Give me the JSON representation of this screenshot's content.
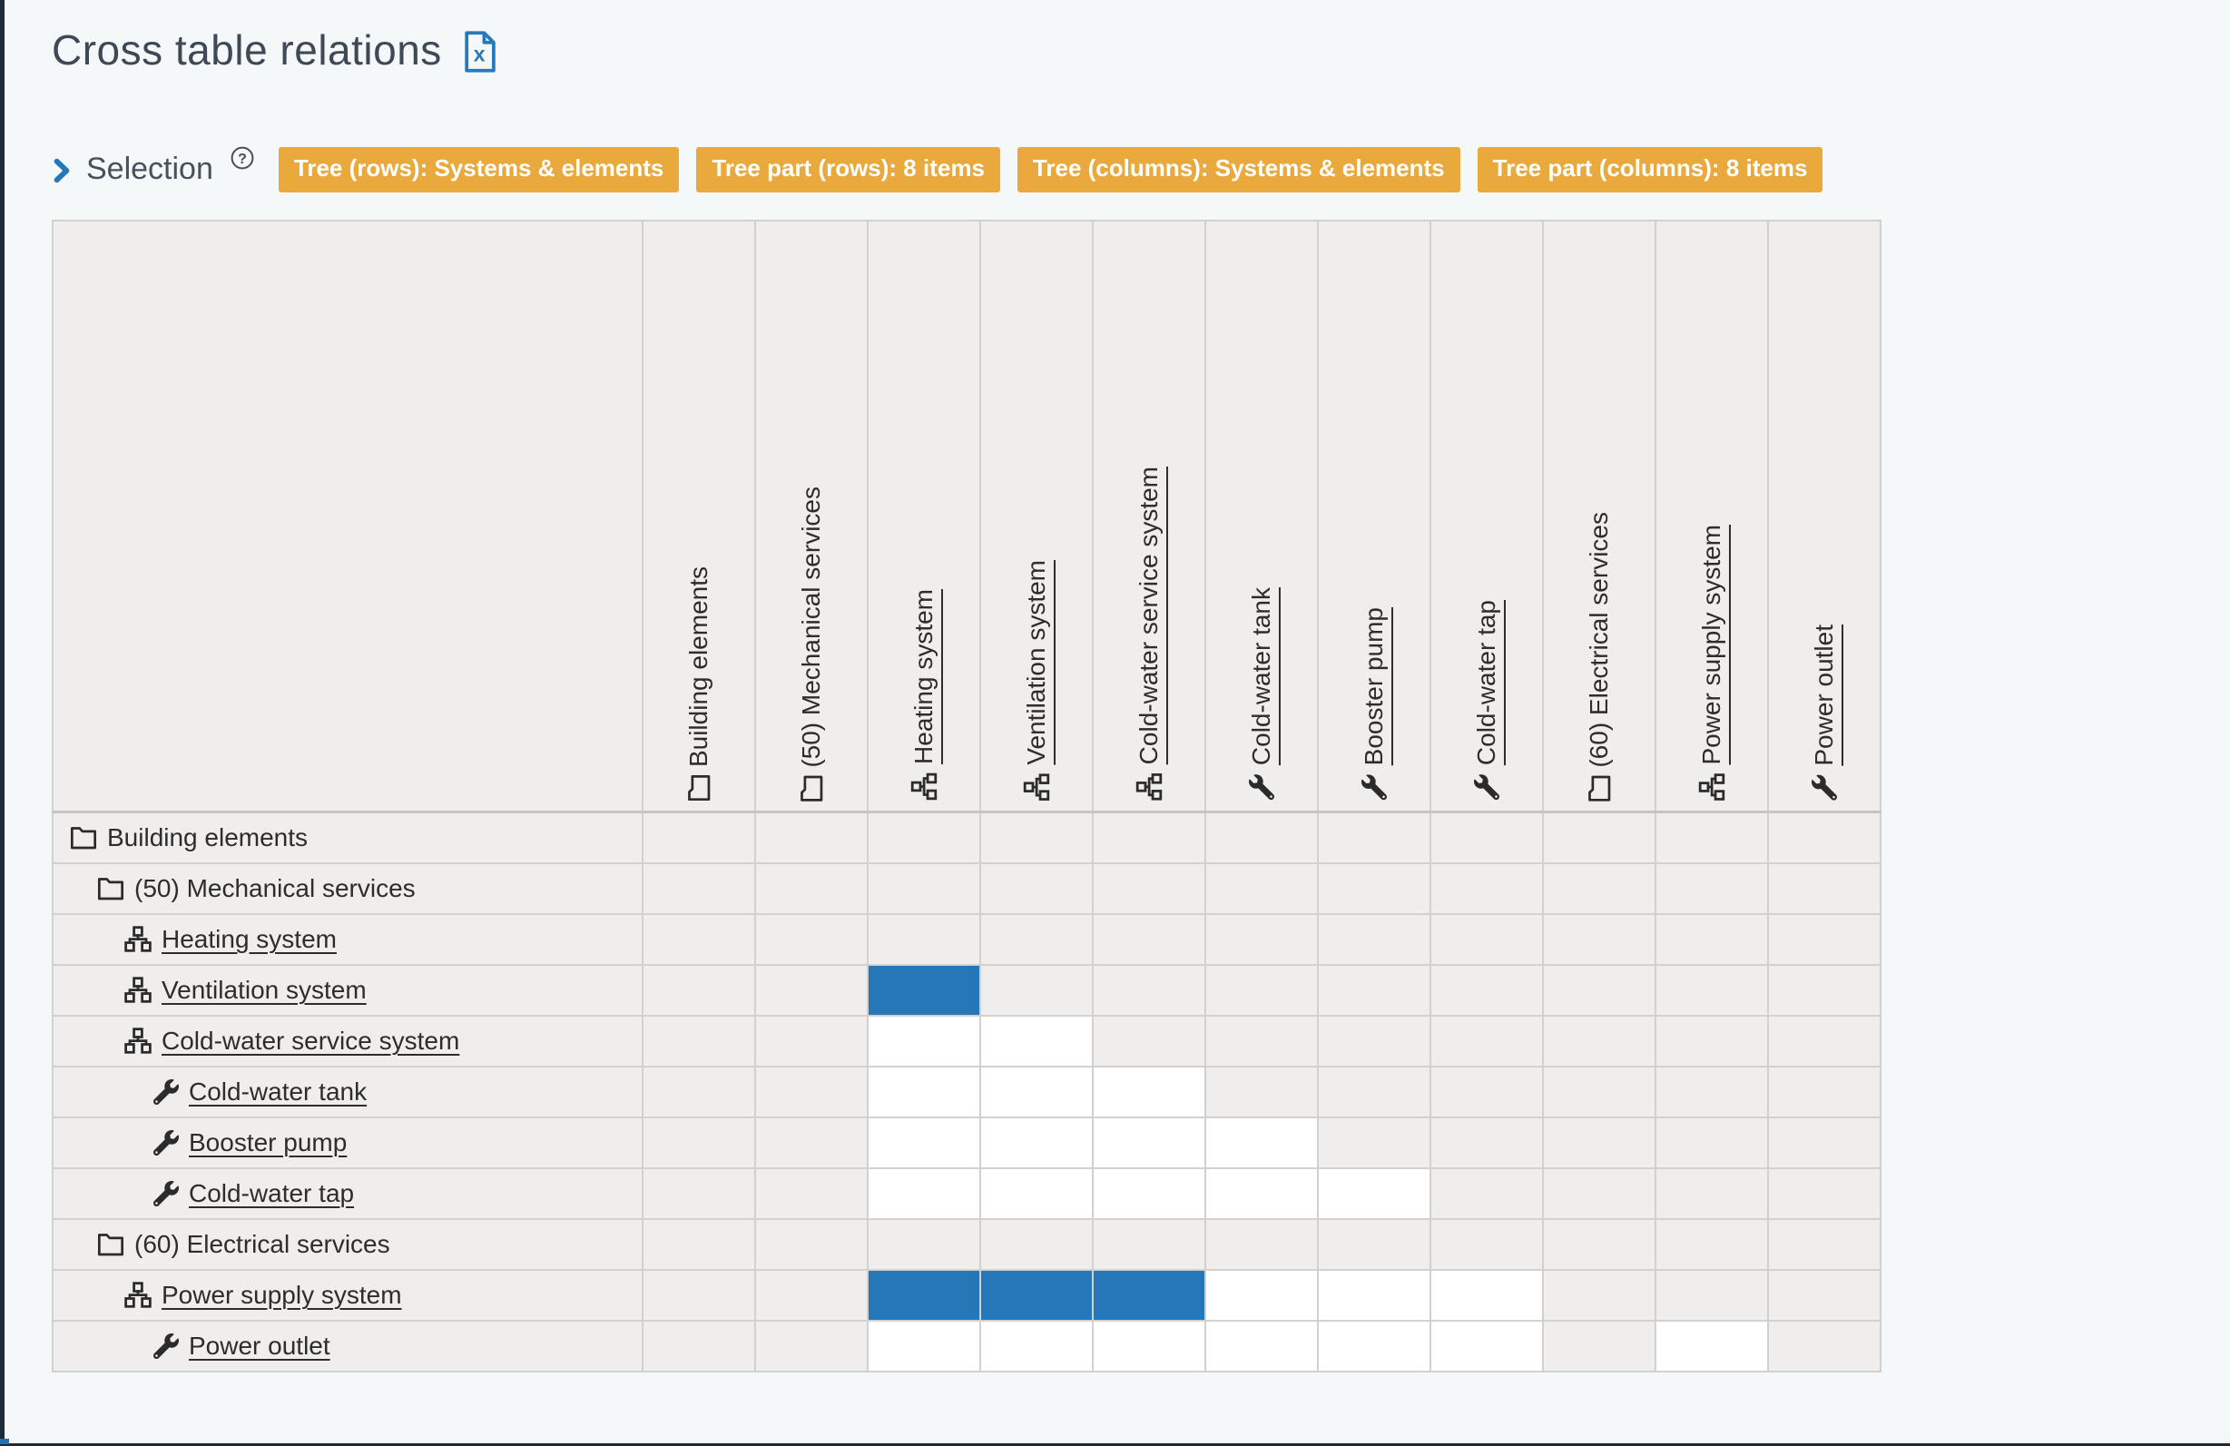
{
  "page": {
    "background": "#f4f8f9",
    "frame_color": "#1d2a37",
    "accent_blue": "#2577b9"
  },
  "header": {
    "title": "Cross table relations",
    "export_icon": "excel-file-icon",
    "export_letter": "x"
  },
  "selection": {
    "label": "Selection",
    "help_glyph": "?",
    "badge_color": "#eaa93c",
    "badges": [
      "Tree (rows): Systems & elements",
      "Tree part (rows): 8 items",
      "Tree (columns): Systems & elements",
      "Tree part (columns): 8 items"
    ]
  },
  "table": {
    "cell_colors": {
      "g": "#efeeec",
      "w": "#ffffff",
      "b": "#2677b8"
    },
    "cell_states": {
      "g": "not-applicable",
      "w": "no-relation",
      "b": "related"
    },
    "columns": [
      {
        "label": "Building elements",
        "icon": "folder",
        "link": false
      },
      {
        "label": "(50) Mechanical services",
        "icon": "folder",
        "link": false
      },
      {
        "label": "Heating system",
        "icon": "system",
        "link": true
      },
      {
        "label": "Ventilation system",
        "icon": "system",
        "link": true
      },
      {
        "label": "Cold-water service system",
        "icon": "system",
        "link": true
      },
      {
        "label": "Cold-water tank",
        "icon": "element",
        "link": true
      },
      {
        "label": "Booster pump",
        "icon": "element",
        "link": true
      },
      {
        "label": "Cold-water tap",
        "icon": "element",
        "link": true
      },
      {
        "label": "(60) Electrical services",
        "icon": "folder",
        "link": false
      },
      {
        "label": "Power supply system",
        "icon": "system",
        "link": true
      },
      {
        "label": "Power outlet",
        "icon": "element",
        "link": true
      }
    ],
    "rows": [
      {
        "label": "Building elements",
        "icon": "folder",
        "link": false,
        "level": 0
      },
      {
        "label": "(50) Mechanical services",
        "icon": "folder",
        "link": false,
        "level": 1
      },
      {
        "label": "Heating system",
        "icon": "system",
        "link": true,
        "level": 2
      },
      {
        "label": "Ventilation system",
        "icon": "system",
        "link": true,
        "level": 2
      },
      {
        "label": "Cold-water service system",
        "icon": "system",
        "link": true,
        "level": 2
      },
      {
        "label": "Cold-water tank",
        "icon": "element",
        "link": true,
        "level": 3
      },
      {
        "label": "Booster pump",
        "icon": "element",
        "link": true,
        "level": 3
      },
      {
        "label": "Cold-water tap",
        "icon": "element",
        "link": true,
        "level": 3
      },
      {
        "label": "(60) Electrical services",
        "icon": "folder",
        "link": false,
        "level": 1
      },
      {
        "label": "Power supply system",
        "icon": "system",
        "link": true,
        "level": 2
      },
      {
        "label": "Power outlet",
        "icon": "element",
        "link": true,
        "level": 3
      }
    ],
    "cells": [
      "ggggggggggg",
      "ggggggggggg",
      "ggggggggggg",
      "ggbgggggggg",
      "ggwwggggggg",
      "ggwwwgggggg",
      "ggwwwwggggg",
      "ggwwwwwgggg",
      "ggggggggggg",
      "ggbbbwwwggg",
      "ggwwwwwwgwg"
    ]
  }
}
